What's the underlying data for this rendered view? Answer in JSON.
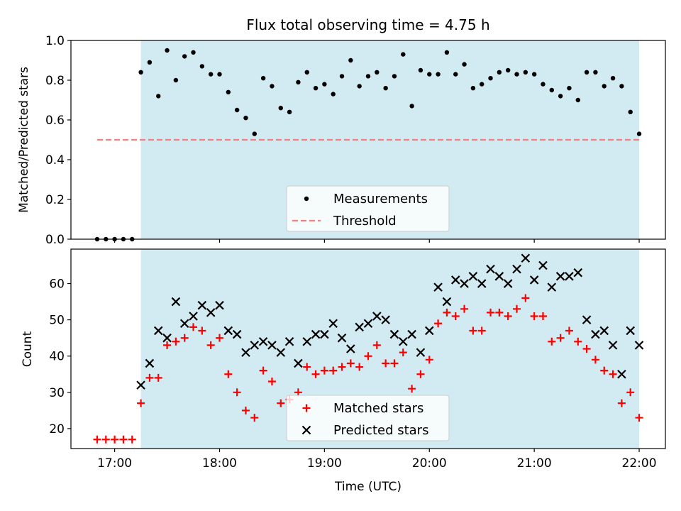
{
  "chart_data": [
    {
      "type": "scatter",
      "title": "Flux total observing time = 4.75 h",
      "xlabel": "",
      "ylabel": "Matched/Predicted stars",
      "xlim": [
        "16:35",
        "22:15"
      ],
      "ylim": [
        0.0,
        1.0
      ],
      "yticks": [
        "0.0",
        "0.2",
        "0.4",
        "0.6",
        "0.8",
        "1.0"
      ],
      "shaded_span": [
        "17:15",
        "22:00"
      ],
      "shade_color": "#add8e6",
      "threshold": {
        "value": 0.5,
        "start": "16:50",
        "end": "22:00",
        "color": "#f08080"
      },
      "legend": {
        "position": "lower-center",
        "entries": [
          "Measurements",
          "Threshold"
        ]
      },
      "series": [
        {
          "name": "Measurements",
          "marker": "dot",
          "color": "#000000",
          "x": [
            "16:50",
            "16:55",
            "17:00",
            "17:05",
            "17:10",
            "17:15",
            "17:20",
            "17:25",
            "17:30",
            "17:35",
            "17:40",
            "17:45",
            "17:50",
            "17:55",
            "18:00",
            "18:05",
            "18:10",
            "18:15",
            "18:20",
            "18:25",
            "18:30",
            "18:35",
            "18:40",
            "18:45",
            "18:50",
            "18:55",
            "19:00",
            "19:05",
            "19:10",
            "19:15",
            "19:20",
            "19:25",
            "19:30",
            "19:35",
            "19:40",
            "19:45",
            "19:50",
            "19:55",
            "20:00",
            "20:05",
            "20:10",
            "20:15",
            "20:20",
            "20:25",
            "20:30",
            "20:35",
            "20:40",
            "20:45",
            "20:50",
            "20:55",
            "21:00",
            "21:05",
            "21:10",
            "21:15",
            "21:20",
            "21:25",
            "21:30",
            "21:35",
            "21:40",
            "21:45",
            "21:50",
            "21:55",
            "22:00"
          ],
          "y": [
            0,
            0,
            0,
            0,
            0,
            0.84,
            0.89,
            0.72,
            0.95,
            0.8,
            0.92,
            0.94,
            0.87,
            0.83,
            0.83,
            0.74,
            0.65,
            0.61,
            0.53,
            0.81,
            0.77,
            0.66,
            0.64,
            0.79,
            0.84,
            0.76,
            0.78,
            0.73,
            0.82,
            0.9,
            0.77,
            0.82,
            0.84,
            0.76,
            0.82,
            0.93,
            0.67,
            0.85,
            0.83,
            0.83,
            0.94,
            0.83,
            0.88,
            0.76,
            0.78,
            0.81,
            0.84,
            0.85,
            0.83,
            0.84,
            0.83,
            0.78,
            0.75,
            0.72,
            0.76,
            0.7,
            0.84,
            0.84,
            0.77,
            0.81,
            0.77,
            0.64,
            0.53
          ]
        }
      ]
    },
    {
      "type": "scatter",
      "title": "",
      "xlabel": "Time (UTC)",
      "ylabel": "Count",
      "xlim": [
        "16:35",
        "22:15"
      ],
      "ylim": [
        14.5,
        69.5
      ],
      "yticks": [
        "20",
        "30",
        "40",
        "50",
        "60"
      ],
      "xticks": [
        "17:00",
        "18:00",
        "19:00",
        "20:00",
        "21:00",
        "22:00"
      ],
      "shaded_span": [
        "17:15",
        "22:00"
      ],
      "shade_color": "#add8e6",
      "legend": {
        "position": "lower-center",
        "entries": [
          "Matched stars",
          "Predicted stars"
        ]
      },
      "series": [
        {
          "name": "Matched stars",
          "marker": "plus",
          "color": "#ff0000",
          "x": [
            "16:50",
            "16:55",
            "17:00",
            "17:05",
            "17:10",
            "17:15",
            "17:20",
            "17:25",
            "17:30",
            "17:35",
            "17:40",
            "17:45",
            "17:50",
            "17:55",
            "18:00",
            "18:05",
            "18:10",
            "18:15",
            "18:20",
            "18:25",
            "18:30",
            "18:35",
            "18:40",
            "18:45",
            "18:50",
            "18:55",
            "19:00",
            "19:05",
            "19:10",
            "19:15",
            "19:20",
            "19:25",
            "19:30",
            "19:35",
            "19:40",
            "19:45",
            "19:50",
            "19:55",
            "20:00",
            "20:05",
            "20:10",
            "20:15",
            "20:20",
            "20:25",
            "20:30",
            "20:35",
            "20:40",
            "20:45",
            "20:50",
            "20:55",
            "21:00",
            "21:05",
            "21:10",
            "21:15",
            "21:20",
            "21:25",
            "21:30",
            "21:35",
            "21:40",
            "21:45",
            "21:50",
            "21:55",
            "22:00"
          ],
          "y": [
            17,
            17,
            17,
            17,
            17,
            27,
            34,
            34,
            43,
            44,
            45,
            48,
            47,
            43,
            45,
            35,
            30,
            25,
            23,
            36,
            33,
            27,
            28,
            30,
            37,
            35,
            36,
            36,
            37,
            38,
            37,
            40,
            43,
            38,
            38,
            41,
            31,
            35,
            39,
            49,
            52,
            51,
            53,
            47,
            47,
            52,
            52,
            51,
            53,
            56,
            51,
            51,
            44,
            45,
            47,
            44,
            42,
            39,
            36,
            35,
            27,
            30,
            23
          ]
        },
        {
          "name": "Predicted stars",
          "marker": "x",
          "color": "#000000",
          "x": [
            "17:15",
            "17:20",
            "17:25",
            "17:30",
            "17:35",
            "17:40",
            "17:45",
            "17:50",
            "17:55",
            "18:00",
            "18:05",
            "18:10",
            "18:15",
            "18:20",
            "18:25",
            "18:30",
            "18:35",
            "18:40",
            "18:45",
            "18:50",
            "18:55",
            "19:00",
            "19:05",
            "19:10",
            "19:15",
            "19:20",
            "19:25",
            "19:30",
            "19:35",
            "19:40",
            "19:45",
            "19:50",
            "19:55",
            "20:00",
            "20:05",
            "20:10",
            "20:15",
            "20:20",
            "20:25",
            "20:30",
            "20:35",
            "20:40",
            "20:45",
            "20:50",
            "20:55",
            "21:00",
            "21:05",
            "21:10",
            "21:15",
            "21:20",
            "21:25",
            "21:30",
            "21:35",
            "21:40",
            "21:45",
            "21:50",
            "21:55",
            "22:00"
          ],
          "y": [
            32,
            38,
            47,
            45,
            55,
            49,
            51,
            54,
            52,
            54,
            47,
            46,
            41,
            43,
            44,
            43,
            41,
            44,
            38,
            44,
            46,
            46,
            49,
            45,
            42,
            48,
            49,
            51,
            50,
            46,
            44,
            46,
            41,
            47,
            59,
            55,
            61,
            60,
            62,
            60,
            64,
            62,
            60,
            64,
            67,
            61,
            65,
            59,
            62,
            62,
            63,
            50,
            46,
            47,
            43,
            35,
            47,
            43
          ]
        }
      ]
    }
  ]
}
